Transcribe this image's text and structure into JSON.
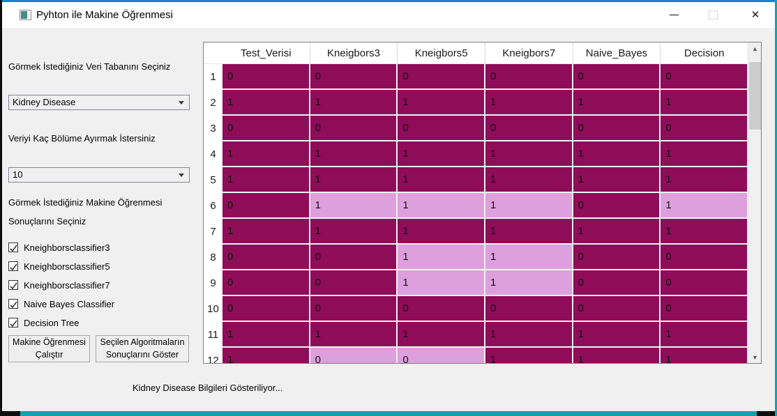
{
  "window": {
    "title": "Pyhton ile Makine Öğrenmesi",
    "controls": {
      "minimize": "",
      "maximize": "",
      "close": "✕"
    }
  },
  "colors": {
    "accent_top": "#1b80d7",
    "accent_teal": "#12a1ad",
    "cell_dark": "#8E0C58",
    "cell_light": "#DDA0DD"
  },
  "sidebar": {
    "db_label": "Görmek İstediğiniz Veri Tabanını Seçiniz",
    "db_select": {
      "value": "Kidney Disease"
    },
    "split_label": "Veriyi Kaç Bölüme Ayırmak İstersiniz",
    "split_select": {
      "value": "10"
    },
    "ml_label_line1": "Görmek İstediğiniz Makine Öğrenmesi",
    "ml_label_line2": "Sonuçlarını Seçiniz",
    "checkboxes": [
      {
        "label": "Kneighborsclassifier3",
        "checked": true
      },
      {
        "label": "Kneighborsclassifier5",
        "checked": true
      },
      {
        "label": "Kneighborsclassifier7",
        "checked": true
      },
      {
        "label": "Naive Bayes Classifier",
        "checked": true
      },
      {
        "label": "Decision Tree",
        "checked": true
      }
    ],
    "run_button": {
      "line1": "Makine Öğrenmesi",
      "line2": "Çalıştır"
    },
    "show_button": {
      "line1": "Seçilen Algoritmaların",
      "line2": "Sonuçlarını Göster"
    }
  },
  "status": "Kidney Disease Bilgileri Gösteriliyor...",
  "table": {
    "headers": [
      "Test_Verisi",
      "Kneigbors3",
      "Kneigbors5",
      "Kneigbors7",
      "Naive_Bayes",
      "Decision"
    ],
    "rows": [
      {
        "n": "1",
        "cells": [
          0,
          0,
          0,
          0,
          0,
          0
        ],
        "light": [
          0,
          0,
          0,
          0,
          0,
          0
        ]
      },
      {
        "n": "2",
        "cells": [
          1,
          1,
          1,
          1,
          1,
          1
        ],
        "light": [
          0,
          0,
          0,
          0,
          0,
          0
        ]
      },
      {
        "n": "3",
        "cells": [
          0,
          0,
          0,
          0,
          0,
          0
        ],
        "light": [
          0,
          0,
          0,
          0,
          0,
          0
        ]
      },
      {
        "n": "4",
        "cells": [
          1,
          1,
          1,
          1,
          1,
          1
        ],
        "light": [
          0,
          0,
          0,
          0,
          0,
          0
        ]
      },
      {
        "n": "5",
        "cells": [
          1,
          1,
          1,
          1,
          1,
          1
        ],
        "light": [
          0,
          0,
          0,
          0,
          0,
          0
        ]
      },
      {
        "n": "6",
        "cells": [
          0,
          1,
          1,
          1,
          0,
          1
        ],
        "light": [
          0,
          1,
          1,
          1,
          0,
          1
        ]
      },
      {
        "n": "7",
        "cells": [
          1,
          1,
          1,
          1,
          1,
          1
        ],
        "light": [
          0,
          0,
          0,
          0,
          0,
          0
        ]
      },
      {
        "n": "8",
        "cells": [
          0,
          0,
          1,
          1,
          0,
          0
        ],
        "light": [
          0,
          0,
          1,
          1,
          0,
          0
        ]
      },
      {
        "n": "9",
        "cells": [
          0,
          0,
          1,
          1,
          0,
          0
        ],
        "light": [
          0,
          0,
          1,
          1,
          0,
          0
        ]
      },
      {
        "n": "10",
        "cells": [
          0,
          0,
          0,
          0,
          0,
          0
        ],
        "light": [
          0,
          0,
          0,
          0,
          0,
          0
        ]
      },
      {
        "n": "11",
        "cells": [
          1,
          1,
          1,
          1,
          1,
          1
        ],
        "light": [
          0,
          0,
          0,
          0,
          0,
          0
        ]
      },
      {
        "n": "12",
        "cells": [
          1,
          0,
          0,
          1,
          1,
          1
        ],
        "light": [
          0,
          1,
          1,
          0,
          0,
          0
        ]
      }
    ]
  }
}
